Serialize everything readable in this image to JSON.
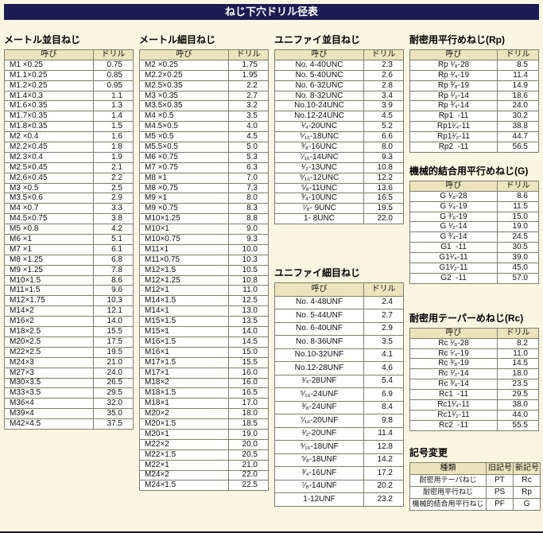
{
  "page_title": "ねじ下穴ドリル径表",
  "col_headers": {
    "name": "呼び",
    "drill": "ドリル"
  },
  "sections": {
    "metric_coarse": {
      "title": "メートル並目ねじ",
      "rows": [
        [
          "M1 ×0.25",
          "0.75"
        ],
        [
          "M1.1×0.25",
          "0.85"
        ],
        [
          "M1.2×0.25",
          "0.95"
        ],
        [
          "M1.4×0.3",
          "1.1"
        ],
        [
          "M1.6×0.35",
          "1.3"
        ],
        [
          "M1.7×0.35",
          "1.4"
        ],
        [
          "M1.8×0.35",
          "1.5"
        ],
        [
          "M2 ×0.4",
          "1.6"
        ],
        [
          "M2.2×0.45",
          "1.8"
        ],
        [
          "M2.3×0.4",
          "1.9"
        ],
        [
          "M2.5×0.45",
          "2.1"
        ],
        [
          "M2.6×0.45",
          "2.2"
        ],
        [
          "M3 ×0.5",
          "2.5"
        ],
        [
          "M3.5×0.6",
          "2.9"
        ],
        [
          "M4 ×0.7",
          "3.3"
        ],
        [
          "M4.5×0.75",
          "3.8"
        ],
        [
          "M5 ×0.8",
          "4.2"
        ],
        [
          "M6 ×1",
          "5.1"
        ],
        [
          "M7 ×1",
          "6.1"
        ],
        [
          "M8 ×1.25",
          "6.8"
        ],
        [
          "M9 ×1.25",
          "7.8"
        ],
        [
          "M10×1.5",
          "8.6"
        ],
        [
          "M11×1.5",
          "9.6"
        ],
        [
          "M12×1.75",
          "10.3"
        ],
        [
          "M14×2",
          "12.1"
        ],
        [
          "M16×2",
          "14.0"
        ],
        [
          "M18×2.5",
          "15.5"
        ],
        [
          "M20×2.5",
          "17.5"
        ],
        [
          "M22×2.5",
          "19.5"
        ],
        [
          "M24×3",
          "21.0"
        ],
        [
          "M27×3",
          "24.0"
        ],
        [
          "M30×3.5",
          "26.5"
        ],
        [
          "M33×3.5",
          "29.5"
        ],
        [
          "M36×4",
          "32.0"
        ],
        [
          "M39×4",
          "35.0"
        ],
        [
          "M42×4.5",
          "37.5"
        ]
      ]
    },
    "metric_fine": {
      "title": "メートル細目ねじ",
      "rows": [
        [
          "M2 ×0.25",
          "1.75"
        ],
        [
          "M2.2×0.25",
          "1.95"
        ],
        [
          "M2.5×0.35",
          "2.2"
        ],
        [
          "M3 ×0.35",
          "2.7"
        ],
        [
          "M3.5×0.35",
          "3.2"
        ],
        [
          "M4 ×0.5",
          "3.5"
        ],
        [
          "M4.5×0.5",
          "4.0"
        ],
        [
          "M5 ×0.5",
          "4.5"
        ],
        [
          "M5.5×0.5",
          "5.0"
        ],
        [
          "M6 ×0.75",
          "5.3"
        ],
        [
          "M7 ×0.75",
          "6.3"
        ],
        [
          "M8 ×1",
          "7.0"
        ],
        [
          "M8 ×0.75",
          "7.3"
        ],
        [
          "M9 ×1",
          "8.0"
        ],
        [
          "M9 ×0.75",
          "8.3"
        ],
        [
          "M10×1.25",
          "8.8"
        ],
        [
          "M10×1",
          "9.0"
        ],
        [
          "M10×0.75",
          "9.3"
        ],
        [
          "M11×1",
          "10.0"
        ],
        [
          "M11×0.75",
          "10.3"
        ],
        [
          "M12×1.5",
          "10.5"
        ],
        [
          "M12×1.25",
          "10.8"
        ],
        [
          "M12×1",
          "11.0"
        ],
        [
          "M14×1.5",
          "12.5"
        ],
        [
          "M14×1",
          "13.0"
        ],
        [
          "M15×1.5",
          "13.5"
        ],
        [
          "M15×1",
          "14.0"
        ],
        [
          "M16×1.5",
          "14.5"
        ],
        [
          "M16×1",
          "15.0"
        ],
        [
          "M17×1.5",
          "15.5"
        ],
        [
          "M17×1",
          "16.0"
        ],
        [
          "M18×2",
          "16.0"
        ],
        [
          "M18×1.5",
          "16.5"
        ],
        [
          "M18×1",
          "17.0"
        ],
        [
          "M20×2",
          "18.0"
        ],
        [
          "M20×1.5",
          "18.5"
        ],
        [
          "M20×1",
          "19.0"
        ],
        [
          "M22×2",
          "20.0"
        ],
        [
          "M22×1.5",
          "20.5"
        ],
        [
          "M22×1",
          "21.0"
        ],
        [
          "M24×2",
          "22.0"
        ],
        [
          "M24×1.5",
          "22.5"
        ]
      ]
    },
    "unified_coarse": {
      "title": "ユニファイ並目ねじ",
      "rows": [
        [
          "No. 4-40UNC",
          "2.3"
        ],
        [
          "No. 5-40UNC",
          "2.6"
        ],
        [
          "No. 6-32UNC",
          "2.8"
        ],
        [
          "No. 8-32UNC",
          "3.4"
        ],
        [
          "No.10-24UNC",
          "3.9"
        ],
        [
          "No.12-24UNC",
          "4.5"
        ],
        [
          "¹⁄₄-20UNC",
          "5.2"
        ],
        [
          "⁵⁄₁₆-18UNC",
          "6.6"
        ],
        [
          "³⁄₈-16UNC",
          "8.0"
        ],
        [
          "⁷⁄₁₆-14UNC",
          "9.3"
        ],
        [
          "¹⁄₂-13UNC",
          "10.8"
        ],
        [
          "⁹⁄₁₆-12UNC",
          "12.2"
        ],
        [
          "⁵⁄₈-11UNC",
          "13.6"
        ],
        [
          "³⁄₄-10UNC",
          "16.5"
        ],
        [
          "⁷⁄₈- 9UNC",
          "19.5"
        ],
        [
          "1- 8UNC",
          "22.0"
        ]
      ]
    },
    "unified_fine": {
      "title": "ユニファイ細目ねじ",
      "rows": [
        [
          "No. 4-48UNF",
          "2.4"
        ],
        [
          "No. 5-44UNF",
          "2.7"
        ],
        [
          "No. 6-40UNF",
          "2.9"
        ],
        [
          "No. 8-36UNF",
          "3.5"
        ],
        [
          "No.10-32UNF",
          "4.1"
        ],
        [
          "No.12-28UNF",
          "4.6"
        ],
        [
          "¹⁄₄-28UNF",
          "5.4"
        ],
        [
          "⁵⁄₁₆-24UNF",
          "6.9"
        ],
        [
          "³⁄₈-24UNF",
          "8.4"
        ],
        [
          "⁷⁄₁₆-20UNF",
          "9.8"
        ],
        [
          "¹⁄₂-20UNF",
          "11.4"
        ],
        [
          "⁹⁄₁₆-18UNF",
          "12.8"
        ],
        [
          "⁵⁄₈-18UNF",
          "14.2"
        ],
        [
          "³⁄₄-16UNF",
          "17.2"
        ],
        [
          "⁷⁄₈-14UNF",
          "20.2"
        ],
        [
          "1-12UNF",
          "23.2"
        ]
      ]
    },
    "rp": {
      "title": "耐密用平行めねじ(Rp)",
      "rows": [
        [
          "Rp ¹⁄₈-28",
          "8.5"
        ],
        [
          "Rp ¹⁄₄-19",
          "11.4"
        ],
        [
          "Rp ³⁄₈-19",
          "14.9"
        ],
        [
          "Rp ¹⁄₂-14",
          "18.6"
        ],
        [
          "Rp ³⁄₄-14",
          "24.0"
        ],
        [
          "Rp1  -11",
          "30.2"
        ],
        [
          "Rp1¹⁄₄-11",
          "38.8"
        ],
        [
          "Rp1¹⁄₂-11",
          "44.7"
        ],
        [
          "Rp2  -11",
          "56.5"
        ]
      ]
    },
    "g": {
      "title": "機械的結合用平行めねじ(G)",
      "rows": [
        [
          "G ¹⁄₈-28",
          "8.6"
        ],
        [
          "G ¹⁄₄-19",
          "11.5"
        ],
        [
          "G ³⁄₈-19",
          "15.0"
        ],
        [
          "G ¹⁄₂-14",
          "19.0"
        ],
        [
          "G ³⁄₄-14",
          "24.5"
        ],
        [
          "G1  -11",
          "30.5"
        ],
        [
          "G1¹⁄₄-11",
          "39.0"
        ],
        [
          "G1¹⁄₂-11",
          "45.0"
        ],
        [
          "G2  -11",
          "57.0"
        ]
      ]
    },
    "rc": {
      "title": "耐密用テーパーめねじ(Rc)",
      "rows": [
        [
          "Rc ¹⁄₈-28",
          "8.2"
        ],
        [
          "Rc ¹⁄₄-19",
          "11.0"
        ],
        [
          "Rc ³⁄₈-19",
          "14.5"
        ],
        [
          "Rc ¹⁄₂-14",
          "18.0"
        ],
        [
          "Rc ³⁄₄-14",
          "23.5"
        ],
        [
          "Rc1  -11",
          "29.5"
        ],
        [
          "Rc1¹⁄₄-11",
          "38.0"
        ],
        [
          "Rc1¹⁄₂-11",
          "44.0"
        ],
        [
          "Rc2  -11",
          "55.5"
        ]
      ]
    },
    "symbol_change": {
      "title": "記号変更",
      "headers": [
        "種類",
        "旧記号",
        "新記号"
      ],
      "rows": [
        [
          "耐密用テーパねじ",
          "PT",
          "Rc"
        ],
        [
          "耐密用平行ねじ",
          "PS",
          "Rp"
        ],
        [
          "機械的結合用平行ねじ",
          "PF",
          "G"
        ]
      ]
    }
  }
}
